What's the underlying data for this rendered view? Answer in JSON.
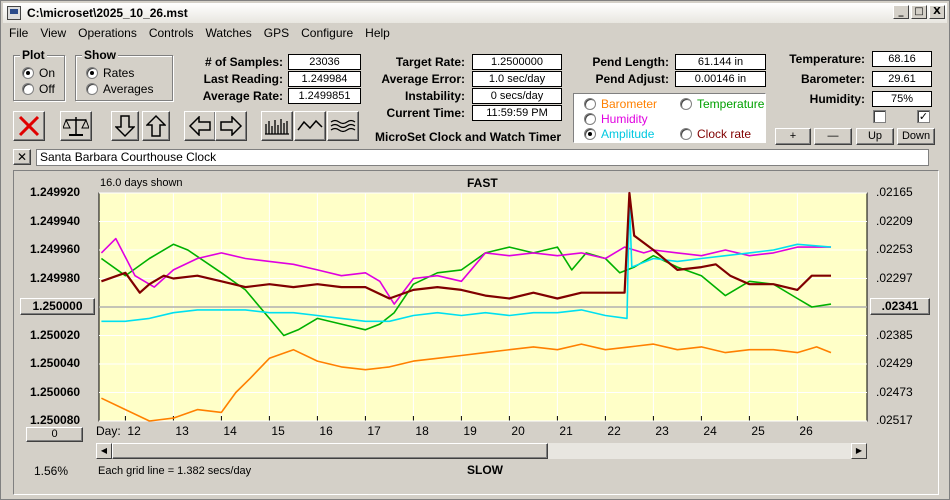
{
  "window": {
    "title": "C:\\microset\\2025_10_26.mst"
  },
  "titlebar_buttons": [
    "_",
    "□",
    "X"
  ],
  "menu": [
    "File",
    "View",
    "Operations",
    "Controls",
    "Watches",
    "GPS",
    "Configure",
    "Help"
  ],
  "plot_group": {
    "title": "Plot",
    "options": [
      {
        "label": "On",
        "selected": true
      },
      {
        "label": "Off",
        "selected": false
      }
    ]
  },
  "show_group": {
    "title": "Show",
    "options": [
      {
        "label": "Rates",
        "selected": true
      },
      {
        "label": "Averages",
        "selected": false
      }
    ]
  },
  "stats": {
    "samples_label": "# of Samples:",
    "samples": "23036",
    "last_reading_label": "Last Reading:",
    "last_reading": "1.249984",
    "average_rate_label": "Average Rate:",
    "average_rate": "1.2499851"
  },
  "rates": {
    "target_rate_label": "Target Rate:",
    "target_rate": "1.2500000",
    "average_error_label": "Average Error:",
    "average_error": "1.0 sec/day",
    "instability_label": "Instability:",
    "instability": "0 secs/day",
    "current_time_label": "Current Time:",
    "current_time": "11:59:59 PM"
  },
  "app_caption": "MicroSet Clock and Watch Timer",
  "pend": {
    "length_label": "Pend Length:",
    "length": "61.144 in",
    "adjust_label": "Pend Adjust:",
    "adjust": "0.00146 in"
  },
  "series_select": [
    {
      "label": "Barometer",
      "color": "#ff8000",
      "selected": false
    },
    {
      "label": "Temperature",
      "color": "#00a000",
      "selected": false
    },
    {
      "label": "Humidity",
      "color": "#e000e0",
      "selected": false
    },
    {
      "label": "Amplitude",
      "color": "#00d8e8",
      "selected": true
    },
    {
      "label": "Clock rate",
      "color": "#800000",
      "selected": false
    }
  ],
  "env": {
    "temperature_label": "Temperature:",
    "temperature": "68.16",
    "barometer_label": "Barometer:",
    "barometer": "29.61",
    "humidity_label": "Humidity:",
    "humidity": "75%"
  },
  "checkboxes": [
    false,
    true
  ],
  "adjust_buttons": [
    "+",
    "—",
    "Up",
    "Down"
  ],
  "clock_name": "Santa Barbara Courthouse Clock",
  "close_x": "✕",
  "graph": {
    "days_shown": "16.0 days shown",
    "fast_label": "FAST",
    "slow_label": "SLOW",
    "grid_note": "Each grid line = 1.382 secs/day",
    "percent": "1.56%",
    "left_button": "0",
    "day_label": "Day:"
  },
  "chart_data": {
    "type": "line",
    "x_label": "Day:",
    "x_ticks": [
      12,
      13,
      14,
      15,
      16,
      17,
      18,
      19,
      20,
      21,
      22,
      23,
      24,
      25,
      26
    ],
    "xlim": [
      11.45,
      27.45
    ],
    "left_axis": {
      "ticks": [
        "1.249920",
        "1.249940",
        "1.249960",
        "1.249980",
        "1.250000",
        "1.250020",
        "1.250040",
        "1.250060",
        "1.250080"
      ],
      "range": [
        1.24992,
        1.25008
      ],
      "center_button": "1.250000"
    },
    "right_axis": {
      "ticks": [
        ".02165",
        ".02209",
        ".02253",
        ".02297",
        ".02341",
        ".02385",
        ".02429",
        ".02473",
        ".02517"
      ],
      "center_button": ".02341"
    },
    "grid": true,
    "series": [
      {
        "key": "barometer",
        "color": "#ff8000",
        "x": [
          11.5,
          12.0,
          12.5,
          13.0,
          13.5,
          14.0,
          14.3,
          14.6,
          15.0,
          15.5,
          16.0,
          16.5,
          17.0,
          17.5,
          18.0,
          18.5,
          19.0,
          19.5,
          20.0,
          20.5,
          21.0,
          21.5,
          22.0,
          22.5,
          23.0,
          23.5,
          24.0,
          24.5,
          25.0,
          25.5,
          26.0,
          26.4,
          26.7
        ],
        "y": [
          1.250064,
          1.250072,
          1.25008,
          1.250078,
          1.250072,
          1.250074,
          1.25006,
          1.25005,
          1.250036,
          1.25003,
          1.250038,
          1.250042,
          1.250044,
          1.250042,
          1.250038,
          1.250036,
          1.250034,
          1.250032,
          1.25003,
          1.250028,
          1.25003,
          1.250026,
          1.25003,
          1.250028,
          1.250026,
          1.25003,
          1.250028,
          1.250032,
          1.25003,
          1.25003,
          1.250032,
          1.250028,
          1.250032
        ]
      },
      {
        "key": "temperature",
        "color": "#00b000",
        "x": [
          11.5,
          12.0,
          12.5,
          13.0,
          13.3,
          14.0,
          14.5,
          15.0,
          15.3,
          15.6,
          16.0,
          16.5,
          17.0,
          17.3,
          17.6,
          18.0,
          18.5,
          19.0,
          19.5,
          20.0,
          20.5,
          21.0,
          21.3,
          21.6,
          22.0,
          22.3,
          22.6,
          23.0,
          23.5,
          24.0,
          24.5,
          25.0,
          25.5,
          26.0,
          26.3,
          26.7
        ],
        "y": [
          1.249966,
          1.249978,
          1.249966,
          1.249956,
          1.24996,
          1.249976,
          1.249988,
          1.250008,
          1.25002,
          1.250016,
          1.250008,
          1.250012,
          1.250016,
          1.250012,
          1.250004,
          1.249984,
          1.249976,
          1.249974,
          1.249962,
          1.249958,
          1.249962,
          1.249958,
          1.249974,
          1.249962,
          1.249966,
          1.249976,
          1.249972,
          1.249964,
          1.249972,
          1.249978,
          1.249992,
          1.249982,
          1.249984,
          1.249994,
          1.25,
          1.249998
        ]
      },
      {
        "key": "humidity",
        "color": "#e000e0",
        "x": [
          11.5,
          11.8,
          12.2,
          12.6,
          13.0,
          13.5,
          14.0,
          14.5,
          15.0,
          15.5,
          16.0,
          16.5,
          17.0,
          17.3,
          17.6,
          18.0,
          18.5,
          19.0,
          19.5,
          20.0,
          20.5,
          21.0,
          21.5,
          22.0,
          22.4,
          22.8,
          23.0,
          23.5,
          24.0,
          24.5,
          25.0,
          25.5,
          26.0,
          26.7
        ],
        "y": [
          1.249962,
          1.249952,
          1.249978,
          1.249986,
          1.249974,
          1.249966,
          1.249962,
          1.249966,
          1.249968,
          1.24997,
          1.249974,
          1.249978,
          1.249976,
          1.249982,
          1.249998,
          1.24998,
          1.249978,
          1.249982,
          1.249962,
          1.249964,
          1.249962,
          1.249964,
          1.249962,
          1.249966,
          1.249958,
          1.249962,
          1.24996,
          1.249962,
          1.249964,
          1.24996,
          1.249964,
          1.249962,
          1.249958,
          1.249958
        ]
      },
      {
        "key": "amplitude",
        "color": "#00e0f0",
        "x": [
          11.5,
          12.0,
          12.5,
          13.0,
          13.5,
          14.0,
          14.5,
          15.0,
          15.5,
          16.0,
          16.5,
          17.0,
          17.5,
          18.0,
          18.5,
          19.0,
          19.5,
          20.0,
          20.5,
          21.0,
          21.5,
          22.0,
          22.45,
          22.5,
          22.55,
          23.0,
          23.5,
          24.0,
          24.5,
          25.0,
          25.5,
          26.0,
          26.7
        ],
        "y": [
          1.25001,
          1.25001,
          1.250008,
          1.250004,
          1.250002,
          1.250002,
          1.250002,
          1.250004,
          1.250004,
          1.250006,
          1.250008,
          1.25001,
          1.25001,
          1.250006,
          1.250004,
          1.250006,
          1.250004,
          1.250006,
          1.250004,
          1.250004,
          1.250002,
          1.250006,
          1.250008,
          1.249924,
          1.249972,
          1.249966,
          1.249968,
          1.249966,
          1.249964,
          1.249962,
          1.24996,
          1.249956,
          1.249958
        ]
      },
      {
        "key": "clock_rate",
        "color": "#800000",
        "x": [
          11.5,
          12.0,
          12.3,
          12.5,
          12.8,
          13.0,
          13.5,
          14.0,
          14.5,
          15.0,
          15.5,
          16.0,
          16.5,
          17.0,
          17.5,
          18.0,
          18.5,
          19.0,
          19.5,
          20.0,
          20.5,
          21.0,
          21.5,
          22.0,
          22.4,
          22.5,
          22.6,
          23.0,
          23.5,
          24.0,
          24.3,
          24.6,
          25.0,
          25.5,
          26.0,
          26.3,
          26.7
        ],
        "y": [
          1.249982,
          1.249976,
          1.24999,
          1.249984,
          1.249978,
          1.24998,
          1.249978,
          1.249982,
          1.249986,
          1.249984,
          1.249986,
          1.249984,
          1.249986,
          1.249986,
          1.249994,
          1.249988,
          1.249986,
          1.249988,
          1.249992,
          1.249994,
          1.24999,
          1.249994,
          1.24999,
          1.24999,
          1.24999,
          1.24992,
          1.24995,
          1.24996,
          1.249974,
          1.249972,
          1.24997,
          1.249978,
          1.249984,
          1.249984,
          1.249988,
          1.249978,
          1.249978
        ]
      }
    ]
  }
}
